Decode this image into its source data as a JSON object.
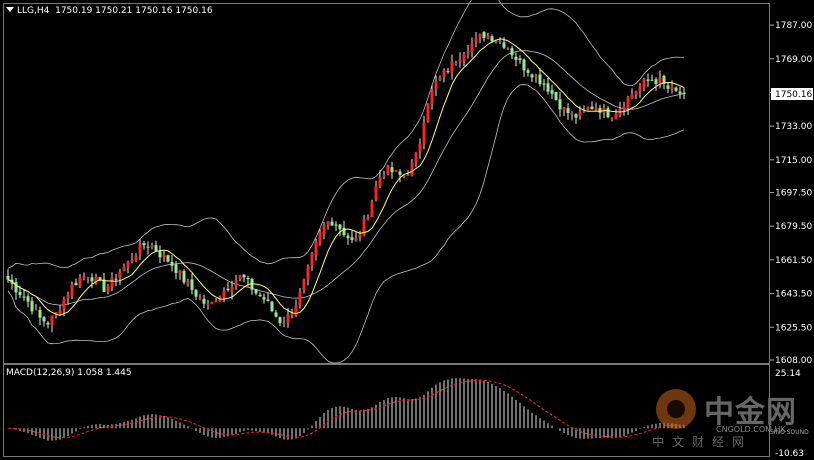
{
  "header": {
    "symbol": "LLG,H4",
    "ohlc": "1750.19 1750.21 1750.16 1750.16"
  },
  "macd_header": "MACD(12,26,9) 1.058 1.445",
  "current_price": "1750.16",
  "watermark": {
    "brand": "中金网",
    "url": "CNGOLD.COM.HK",
    "subtitle": "中文财经网",
    "sino": "SINO SOUND"
  },
  "colors": {
    "background": "#000000",
    "up_candle": "#e8e8e8",
    "bull_candle": "#ff2020",
    "bear_candle": "#90ee90",
    "bollinger": "#c0c0c0",
    "ma": "#ffff66",
    "macd_signal": "#ff2020",
    "macd_hist": "#e0e0e0"
  },
  "chart_data": [
    {
      "type": "candlestick",
      "title": "LLG,H4",
      "ylim": [
        1608.0,
        1794.0
      ],
      "y_ticks": [
        "1787.00",
        "1769.00",
        "1751.00",
        "1733.00",
        "1715.00",
        "1697.50",
        "1679.50",
        "1661.50",
        "1643.50",
        "1625.50",
        "1608.00"
      ],
      "y_tick_values": [
        1787.0,
        1769.0,
        1751.0,
        1733.0,
        1715.0,
        1697.5,
        1679.5,
        1661.5,
        1643.5,
        1625.5,
        1608.0
      ],
      "current_price": 1750.16,
      "close_path": [
        1651,
        1646,
        1642,
        1636,
        1630,
        1628,
        1633,
        1641,
        1648,
        1652,
        1654,
        1650,
        1646,
        1650,
        1656,
        1660,
        1666,
        1670,
        1669,
        1664,
        1661,
        1656,
        1650,
        1645,
        1640,
        1636,
        1642,
        1646,
        1650,
        1653,
        1648,
        1643,
        1640,
        1633,
        1628,
        1632,
        1640,
        1652,
        1666,
        1678,
        1683,
        1680,
        1675,
        1670,
        1678,
        1690,
        1705,
        1710,
        1708,
        1706,
        1710,
        1720,
        1745,
        1755,
        1760,
        1765,
        1770,
        1775,
        1778,
        1782,
        1781,
        1779,
        1776,
        1770,
        1765,
        1762,
        1758,
        1754,
        1748,
        1742,
        1739,
        1738,
        1742,
        1744,
        1741,
        1739,
        1743,
        1748,
        1752,
        1756,
        1758,
        1757,
        1753,
        1751,
        1750.16
      ],
      "bands": "Bollinger Bands (20)",
      "moving_average": "MA"
    },
    {
      "type": "bar",
      "title": "MACD(12,26,9)",
      "macd": 1.058,
      "signal": 1.445,
      "y_ticks": [
        "25.14",
        "-10.63"
      ],
      "ylim": [
        -10.63,
        25.14
      ]
    }
  ]
}
